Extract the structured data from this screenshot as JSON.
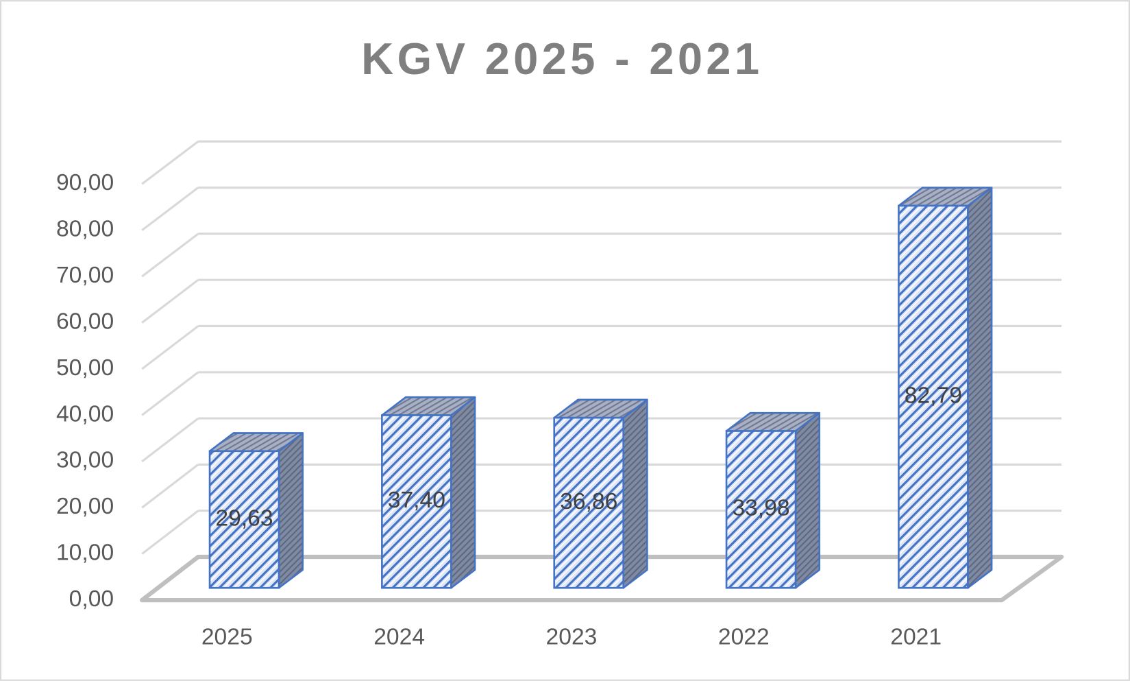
{
  "chart_data": {
    "type": "bar3d",
    "title": "KGV 2025 - 2021",
    "categories": [
      "2025",
      "2024",
      "2023",
      "2022",
      "2021"
    ],
    "values": [
      29.63,
      37.4,
      36.86,
      33.98,
      82.79
    ],
    "value_labels": [
      "29,63",
      "37,40",
      "36,86",
      "33,98",
      "82,79"
    ],
    "color": "#4472c4",
    "ylim": [
      0,
      90
    ],
    "yticks": [
      {
        "value": 0,
        "label": "0,00"
      },
      {
        "value": 10,
        "label": "10,00"
      },
      {
        "value": 20,
        "label": "20,00"
      },
      {
        "value": 30,
        "label": "30,00"
      },
      {
        "value": 40,
        "label": "40,00"
      },
      {
        "value": 50,
        "label": "50,00"
      },
      {
        "value": 60,
        "label": "60,00"
      },
      {
        "value": 70,
        "label": "70,00"
      },
      {
        "value": 80,
        "label": "80,00"
      },
      {
        "value": 90,
        "label": "90,00"
      }
    ],
    "grid": true
  }
}
